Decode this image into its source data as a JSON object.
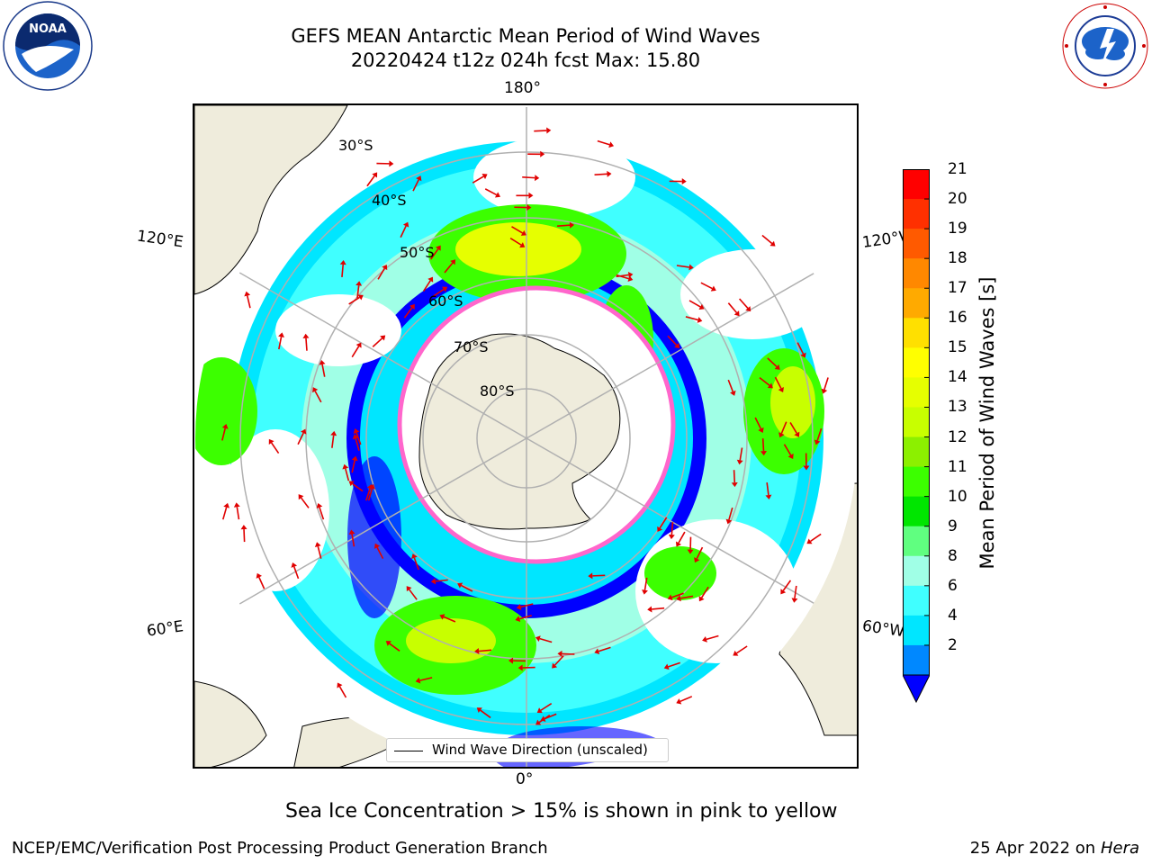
{
  "title": {
    "line1": "GEFS MEAN Antarctic Mean Period of Wind Waves",
    "line2": "20220424 t12z 024h fcst   Max: 15.80"
  },
  "map": {
    "projection": "South polar stereographic",
    "longitude_labels": {
      "top": "180°",
      "bottom": "0°",
      "left_upper": "120°E",
      "right_upper": "120°W",
      "left_lower": "60°E",
      "right_lower": "60°W"
    },
    "latitude_labels": [
      "30°S",
      "40°S",
      "50°S",
      "60°S",
      "70°S",
      "80°S"
    ],
    "colors": {
      "land": "#efecdc",
      "sea_ice_edge": "#ff66cc",
      "arrows": "#e00000",
      "gridlines": "#b0b0b0"
    }
  },
  "colorbar": {
    "title": "Mean Period of Wind Waves [s]",
    "ticks": [
      "21",
      "20",
      "19",
      "18",
      "17",
      "16",
      "15",
      "14",
      "13",
      "12",
      "11",
      "10",
      "9",
      "8",
      "6",
      "4",
      "2"
    ],
    "bins_top_to_bottom": [
      "#ff0000",
      "#ff3000",
      "#ff5a00",
      "#ff8800",
      "#ffaa00",
      "#ffe000",
      "#ffff00",
      "#e6ff00",
      "#c8ff00",
      "#8cf000",
      "#3cff00",
      "#00e600",
      "#60ff80",
      "#a0ffe6",
      "#40ffff",
      "#00e6ff",
      "#0088ff"
    ],
    "extend_color": "#0000ff"
  },
  "legend": {
    "label": "Wind Wave Direction (unscaled)"
  },
  "footer": {
    "note": "Sea Ice Concentration > 15% is shown in pink to yellow",
    "left": "NCEP/EMC/Verification Post Processing Product Generation Branch",
    "right_prefix": "25 Apr 2022 on ",
    "right_host": "Hera"
  }
}
